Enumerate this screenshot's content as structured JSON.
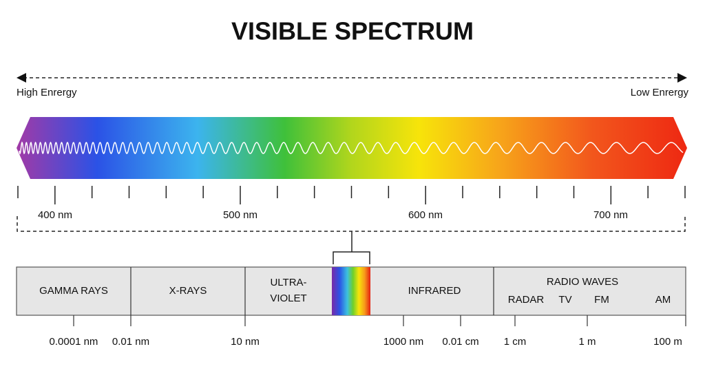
{
  "title": "VISIBLE SPECTRUM",
  "energy": {
    "high": "High Enrergy",
    "low": "Low Enrergy"
  },
  "wavelength_labels": [
    "400 nm",
    "500 nm",
    "600 nm",
    "700 nm"
  ],
  "regions": {
    "gamma": "GAMMA RAYS",
    "xray": "X-RAYS",
    "uv": [
      "ULTRA-",
      "VIOLET"
    ],
    "infrared": "INFRARED",
    "radio": "RADIO WAVES",
    "radio_bands": [
      "RADAR",
      "TV",
      "FM",
      "AM"
    ]
  },
  "scale_labels": [
    "0.0001 nm",
    "0.01 nm",
    "10 nm",
    "1000 nm",
    "0.01 cm",
    "1 cm",
    "1 m",
    "100 m"
  ]
}
